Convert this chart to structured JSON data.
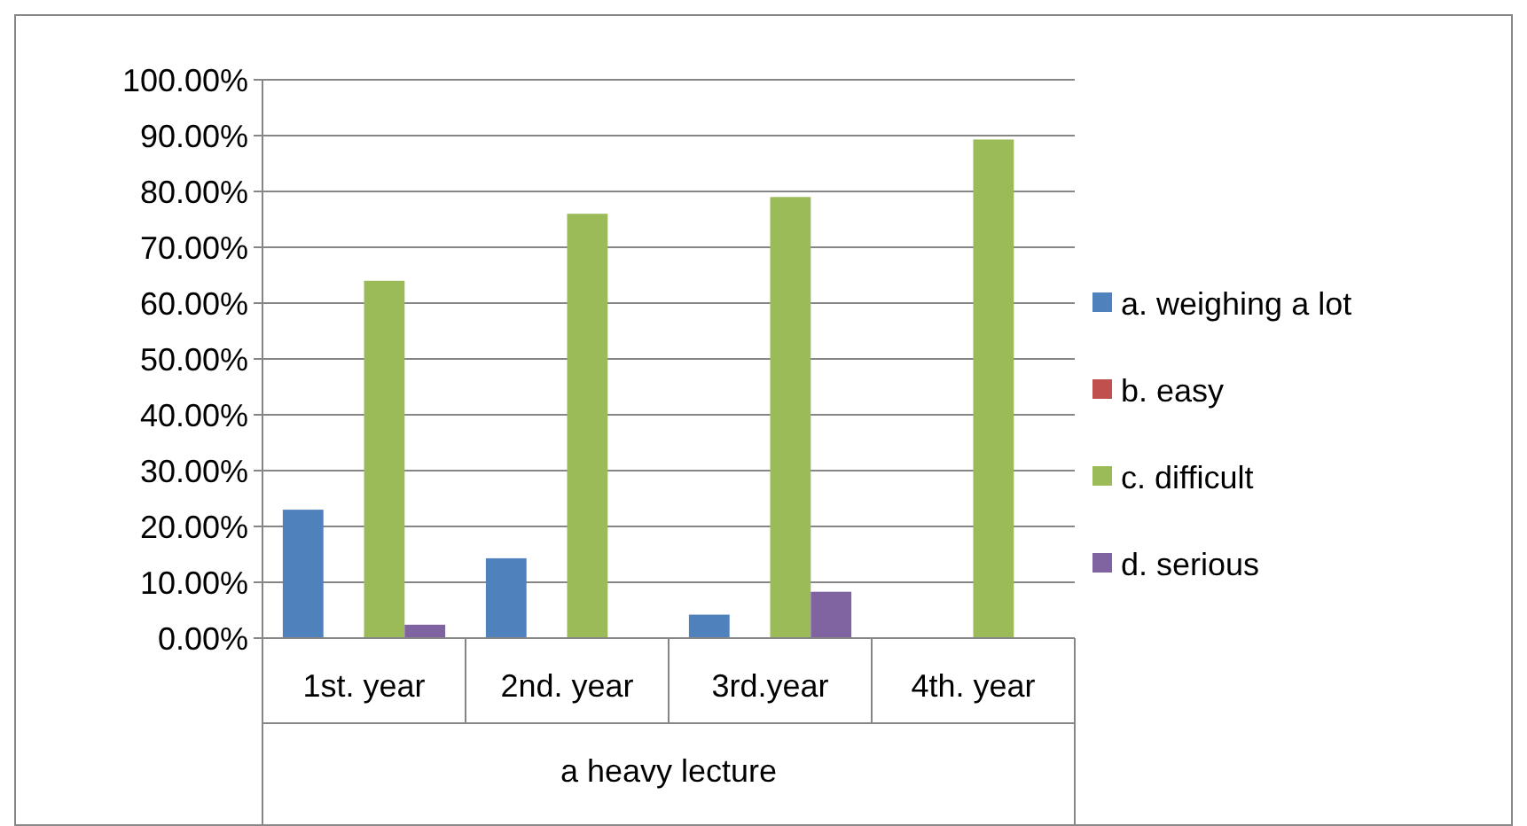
{
  "chart_data": {
    "type": "bar",
    "xlabel": "a heavy lecture",
    "categories": [
      "1st. year",
      "2nd. year",
      "3rd.year",
      "4th. year"
    ],
    "series": [
      {
        "name": "a. weighing a lot",
        "color": "#4f81bd",
        "values": [
          23,
          14.3,
          4.2,
          0
        ]
      },
      {
        "name": "b. easy",
        "color": "#c0504d",
        "values": [
          0,
          0,
          0,
          0
        ]
      },
      {
        "name": "c. difficult",
        "color": "#9bbb59",
        "values": [
          64,
          76,
          79,
          89.3
        ]
      },
      {
        "name": "d. serious",
        "color": "#8064a2",
        "values": [
          2.4,
          0,
          8.3,
          0
        ]
      }
    ],
    "ylim": [
      0,
      100
    ],
    "yticks": [
      {
        "value": 0,
        "label": "0.00%"
      },
      {
        "value": 10,
        "label": "10.00%"
      },
      {
        "value": 20,
        "label": "20.00%"
      },
      {
        "value": 30,
        "label": "30.00%"
      },
      {
        "value": 40,
        "label": "40.00%"
      },
      {
        "value": 50,
        "label": "50.00%"
      },
      {
        "value": 60,
        "label": "60.00%"
      },
      {
        "value": 70,
        "label": "70.00%"
      },
      {
        "value": 80,
        "label": "80.00%"
      },
      {
        "value": 90,
        "label": "90.00%"
      },
      {
        "value": 100,
        "label": "100.00%"
      }
    ],
    "grid": "y",
    "legend": "right"
  }
}
